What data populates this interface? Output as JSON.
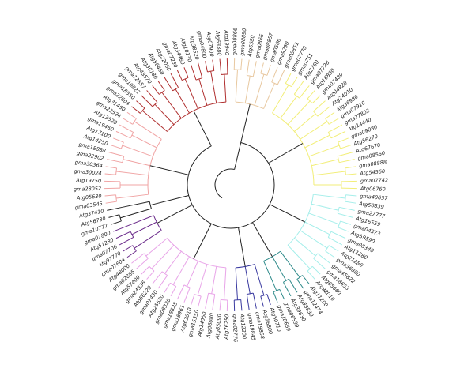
{
  "tree": {
    "clades": [
      {
        "color": "#e8c8a0",
        "leaves": [
          "gma08866",
          "gma08890",
          "Atg6580",
          "gma0866",
          "gma08857",
          "gma0566",
          "gma9290",
          "gma08851"
        ]
      },
      {
        "color": "#f2ee78",
        "leaves": [
          "gma07770",
          "gma0751",
          "Atg2780",
          "gma07728",
          "Atg16880",
          "gma07480",
          "Atg04820",
          "Atg24010",
          "Atg36980",
          "gma07910",
          "gma27802",
          "Atg14440",
          "gma09080",
          "Atg56270",
          "Atg67670",
          "gma08560",
          "gma08888",
          "Atg54560",
          "gma07742",
          "Atg06760"
        ]
      },
      {
        "color": "#a4eeea",
        "leaves": [
          "gma40657",
          "Atg50839",
          "gma27777",
          "Atg16559",
          "gma04373",
          "Atg59590",
          "gma08340",
          "Atg11280",
          "Atg21280",
          "gma36880",
          "gma45822",
          "gma18653",
          "Atg65660",
          "Atg92010"
        ]
      },
      {
        "color": "#2e8a8a",
        "leaves": [
          "Atg11200",
          "gma12474",
          "Atg38830",
          "Atg39630",
          "gma06539",
          "gma18659"
        ]
      },
      {
        "color": "#3a3aa0",
        "leaves": [
          "Atg50710",
          "Atg16800",
          "gma19858",
          "gma19845",
          "Atg12200",
          "gma02776"
        ]
      },
      {
        "color": "#e8a4e8",
        "leaves": [
          "Atg76250",
          "Atg65090",
          "Atg06080",
          "Atg14050",
          "gma15350",
          "Atg62010",
          "gma18961",
          "gma18825",
          "gma08320",
          "Atg25530",
          "gma07430",
          "Atg56220",
          "gma24336",
          "Atg57400",
          "gma02885",
          "Atg48000"
        ]
      },
      {
        "color": "#6a2a8a",
        "leaves": [
          "gma07604",
          "Atg97770",
          "gma07706",
          "Atg51280",
          "gma07800"
        ]
      },
      {
        "color": "#222222",
        "leaves": [
          "gma10777",
          "Atg56730",
          "Atg37410"
        ]
      },
      {
        "color": "#f0a4a4",
        "leaves": [
          "gma03545",
          "Atg05630",
          "gma28052",
          "Atg19750",
          "gma30024",
          "gma30364",
          "gma22902",
          "gma18888",
          "Atg14250",
          "Atg17100",
          "gma19460",
          "Atg13520",
          "gma22524",
          "Atg31480"
        ]
      },
      {
        "color": "#b03030",
        "leaves": [
          "gma22604",
          "gma18350",
          "gma10822",
          "gma12857",
          "Atg43570",
          "Atg30180",
          "Atg56460",
          "Atg22050",
          "gma07230",
          "Atg34460",
          "Atg10130",
          "Atg38520",
          "gma04800",
          "Atg07900",
          "Atg63380",
          "Atg19940"
        ]
      }
    ]
  }
}
